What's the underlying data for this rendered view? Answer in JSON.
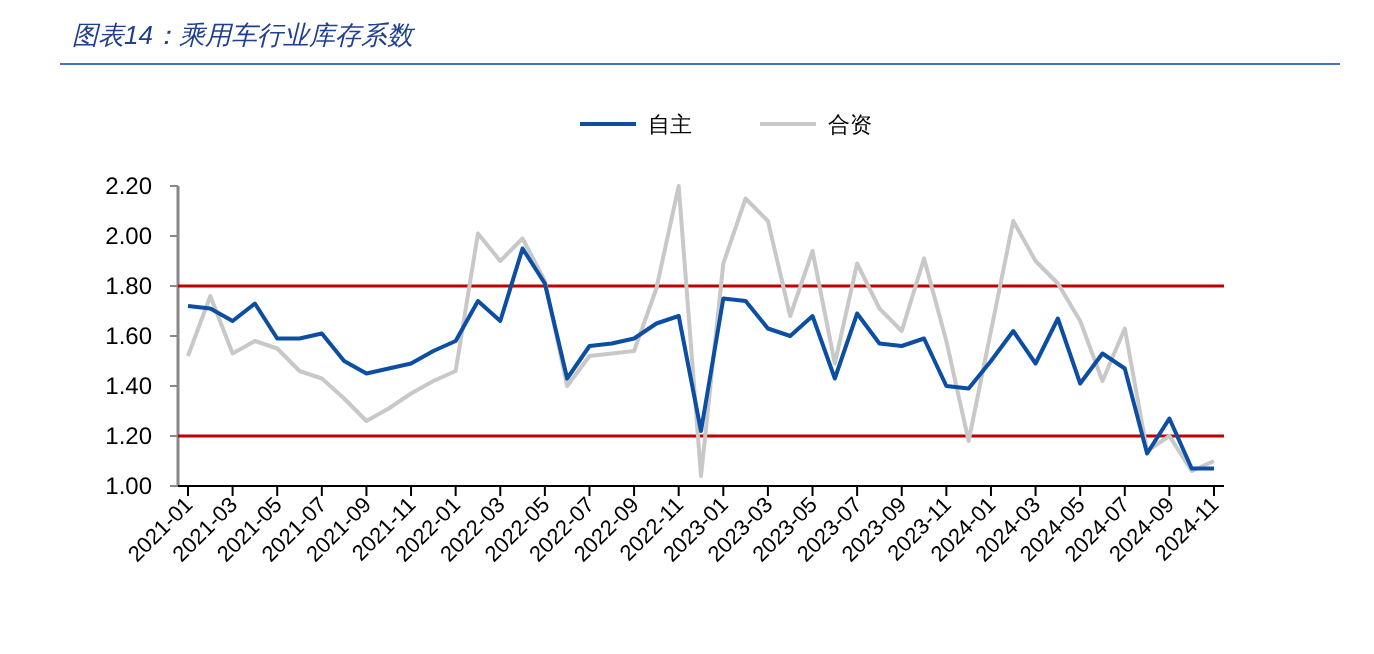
{
  "chart_data": {
    "type": "line",
    "title": "图表14：乘用车行业库存系数",
    "categories": [
      "2021-01",
      null,
      "2021-03",
      null,
      "2021-05",
      null,
      "2021-07",
      null,
      "2021-09",
      null,
      "2021-11",
      null,
      "2022-01",
      null,
      "2022-03",
      null,
      "2022-05",
      null,
      "2022-07",
      null,
      "2022-09",
      null,
      "2022-11",
      null,
      "2023-01",
      null,
      "2023-03",
      null,
      "2023-05",
      null,
      "2023-07",
      null,
      "2023-09",
      null,
      "2023-11",
      null,
      "2024-01",
      null,
      "2024-03",
      null,
      "2024-05",
      null,
      "2024-07",
      null,
      "2024-09",
      null,
      "2024-11"
    ],
    "series": [
      {
        "name": "自主",
        "color": "#0b4ea2",
        "values": [
          1.72,
          1.71,
          1.66,
          1.73,
          1.59,
          1.59,
          1.61,
          1.5,
          1.45,
          1.47,
          1.49,
          1.54,
          1.58,
          1.74,
          1.66,
          1.95,
          1.81,
          1.43,
          1.56,
          1.57,
          1.59,
          1.65,
          1.68,
          1.22,
          1.75,
          1.74,
          1.63,
          1.6,
          1.68,
          1.43,
          1.69,
          1.57,
          1.56,
          1.59,
          1.4,
          1.39,
          1.5,
          1.62,
          1.49,
          1.67,
          1.41,
          1.53,
          1.47,
          1.13,
          1.27,
          1.07,
          1.07
        ]
      },
      {
        "name": "合资",
        "color": "#c8c8c8",
        "values": [
          1.52,
          1.76,
          1.53,
          1.58,
          1.55,
          1.46,
          1.43,
          1.35,
          1.26,
          1.31,
          1.37,
          1.42,
          1.46,
          2.01,
          1.9,
          1.99,
          1.82,
          1.4,
          1.52,
          1.53,
          1.54,
          1.79,
          2.2,
          1.04,
          1.89,
          2.15,
          2.06,
          1.68,
          1.94,
          1.49,
          1.89,
          1.71,
          1.62,
          1.91,
          1.58,
          1.18,
          1.62,
          2.06,
          1.9,
          1.81,
          1.66,
          1.42,
          1.63,
          1.14,
          1.2,
          1.06,
          1.1
        ]
      }
    ],
    "ylim": [
      1.0,
      2.2
    ],
    "yticks": [
      {
        "value": 1.0,
        "label": "1.00"
      },
      {
        "value": 1.2,
        "label": "1.20"
      },
      {
        "value": 1.4,
        "label": "1.40"
      },
      {
        "value": 1.6,
        "label": "1.60"
      },
      {
        "value": 1.8,
        "label": "1.80"
      },
      {
        "value": 2.0,
        "label": "2.00"
      },
      {
        "value": 2.2,
        "label": "2.20"
      }
    ],
    "ref_lines": [
      {
        "axis": "y",
        "value": 1.8,
        "color": "#c00000"
      },
      {
        "axis": "y",
        "value": 1.2,
        "color": "#c00000"
      }
    ],
    "legend": "top",
    "grid": false,
    "marker": "none",
    "line_style": "solid"
  }
}
